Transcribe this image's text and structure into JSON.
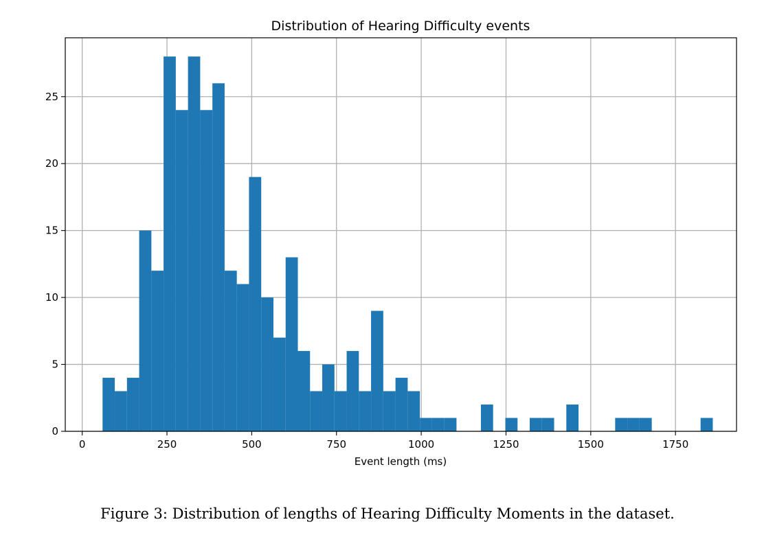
{
  "chart_data": {
    "type": "bar",
    "title": "Distribution of Hearing Difficulty events",
    "xlabel": "Event length (ms)",
    "ylabel": "",
    "xlim": [
      -50,
      1930
    ],
    "ylim": [
      0,
      29.4
    ],
    "xticks": [
      0,
      250,
      500,
      750,
      1000,
      1250,
      1500,
      1750
    ],
    "yticks": [
      0,
      5,
      10,
      15,
      20,
      25
    ],
    "grid": true,
    "color": "#1f77b4",
    "bin_edges": [
      60,
      96,
      132,
      168,
      204,
      240,
      276,
      312,
      348,
      384,
      420,
      456,
      492,
      528,
      564,
      600,
      636,
      672,
      708,
      744,
      780,
      816,
      852,
      888,
      924,
      960,
      996,
      1032,
      1068,
      1104,
      1140,
      1176,
      1212,
      1248,
      1284,
      1320,
      1356,
      1392,
      1428,
      1464,
      1500,
      1536,
      1572,
      1608,
      1644,
      1680,
      1716,
      1752,
      1788,
      1824,
      1860
    ],
    "values": [
      4,
      3,
      4,
      15,
      12,
      28,
      24,
      28,
      24,
      26,
      12,
      11,
      19,
      10,
      7,
      13,
      6,
      3,
      5,
      3,
      6,
      3,
      9,
      3,
      4,
      3,
      1,
      1,
      1,
      0,
      0,
      2,
      0,
      1,
      0,
      1,
      1,
      0,
      2,
      0,
      0,
      0,
      1,
      1,
      1,
      0,
      0,
      0,
      0,
      1
    ]
  },
  "caption": "Figure 3: Distribution of lengths of Hearing Difficulty Moments in the dataset."
}
